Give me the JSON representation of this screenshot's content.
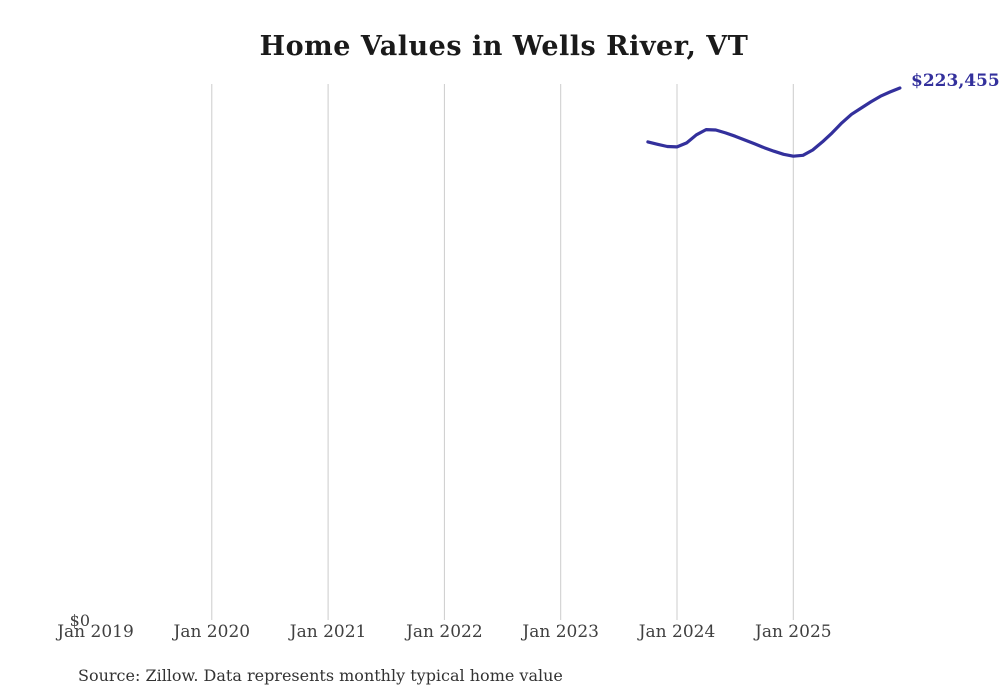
{
  "title": "Home Values in Wells River, VT",
  "source_note": "Source: Zillow. Data represents monthly typical home value",
  "y_zero_label": "$0",
  "last_value_label": "$223,455",
  "colors": {
    "background": "#ffffff",
    "line": "#33309c",
    "annotation": "#33309c",
    "grid": "#cccccc",
    "tick_label": "#404040",
    "title": "#1a1a1a",
    "source": "#333333"
  },
  "x_axis": {
    "tick_labels": [
      "Jan 2019",
      "Jan 2020",
      "Jan 2021",
      "Jan 2022",
      "Jan 2023",
      "Jan 2024",
      "Jan 2025"
    ],
    "tick_years": [
      2019,
      2020,
      2021,
      2022,
      2023,
      2024,
      2025
    ],
    "gridline_years": [
      2020,
      2021,
      2022,
      2023,
      2024,
      2025
    ]
  },
  "chart_data": {
    "type": "line",
    "title": "Home Values in Wells River, VT",
    "xlabel": "",
    "ylabel": "",
    "ylim": [
      0,
      225000
    ],
    "x_range": [
      "2019-01",
      "2025-12"
    ],
    "grid": "vertical-only",
    "legend": "none",
    "annotation": {
      "text": "$223,455",
      "at": "2025-12"
    },
    "x": [
      "2023-10",
      "2023-11",
      "2023-12",
      "2024-01",
      "2024-02",
      "2024-03",
      "2024-04",
      "2024-05",
      "2024-06",
      "2024-07",
      "2024-08",
      "2024-09",
      "2024-10",
      "2024-11",
      "2024-12",
      "2025-01",
      "2025-02",
      "2025-03",
      "2025-04",
      "2025-05",
      "2025-06",
      "2025-07",
      "2025-08",
      "2025-09",
      "2025-10",
      "2025-11",
      "2025-12"
    ],
    "values": [
      200800,
      199800,
      198900,
      198700,
      200400,
      203800,
      206000,
      205800,
      204600,
      203200,
      201600,
      200000,
      198400,
      196900,
      195600,
      194800,
      195200,
      197400,
      200800,
      204600,
      208800,
      212400,
      215000,
      217600,
      220000,
      221800,
      223455
    ]
  }
}
